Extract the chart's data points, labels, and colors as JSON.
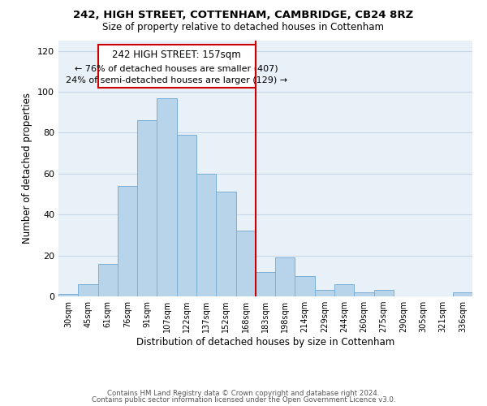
{
  "title": "242, HIGH STREET, COTTENHAM, CAMBRIDGE, CB24 8RZ",
  "subtitle": "Size of property relative to detached houses in Cottenham",
  "xlabel": "Distribution of detached houses by size in Cottenham",
  "ylabel": "Number of detached properties",
  "bar_labels": [
    "30sqm",
    "45sqm",
    "61sqm",
    "76sqm",
    "91sqm",
    "107sqm",
    "122sqm",
    "137sqm",
    "152sqm",
    "168sqm",
    "183sqm",
    "198sqm",
    "214sqm",
    "229sqm",
    "244sqm",
    "260sqm",
    "275sqm",
    "290sqm",
    "305sqm",
    "321sqm",
    "336sqm"
  ],
  "bar_heights": [
    1,
    6,
    16,
    54,
    86,
    97,
    79,
    60,
    51,
    32,
    12,
    19,
    10,
    3,
    6,
    2,
    3,
    0,
    0,
    0,
    2
  ],
  "bar_color": "#b8d4ea",
  "bar_edge_color": "#7bafd4",
  "vline_x": 9.5,
  "vline_color": "#cc0000",
  "annotation_title": "242 HIGH STREET: 157sqm",
  "annotation_line1": "← 76% of detached houses are smaller (407)",
  "annotation_line2": "24% of semi-detached houses are larger (129) →",
  "annotation_box_edge": "#cc0000",
  "ylim": [
    0,
    125
  ],
  "yticks": [
    0,
    20,
    40,
    60,
    80,
    100,
    120
  ],
  "bg_color": "#e8f0f8",
  "grid_color": "#c8d8e8",
  "footer1": "Contains HM Land Registry data © Crown copyright and database right 2024.",
  "footer2": "Contains public sector information licensed under the Open Government Licence v3.0."
}
